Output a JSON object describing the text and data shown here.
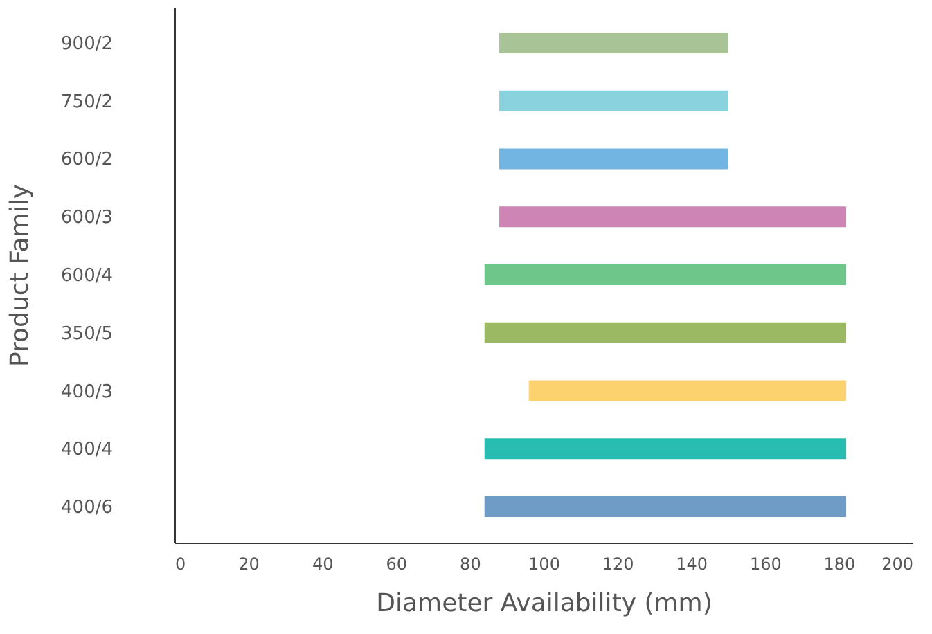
{
  "chart_data": {
    "type": "bar",
    "orientation": "horizontal",
    "xlabel": "Diameter Availability (mm)",
    "ylabel": "Product Family",
    "categories": [
      "900/2",
      "750/2",
      "600/2",
      "600/3",
      "600/4",
      "350/5",
      "400/3",
      "400/4",
      "400/6"
    ],
    "base": [
      88,
      88,
      88,
      88,
      84,
      84,
      96,
      84,
      84
    ],
    "values": [
      62,
      62,
      62,
      94,
      98,
      98,
      86,
      98,
      98
    ],
    "colors": [
      "#a8c496",
      "#8ad3de",
      "#72b5e3",
      "#cf84b6",
      "#6fc68a",
      "#9bb862",
      "#fcd26f",
      "#29bcb0",
      "#6f9cc7"
    ],
    "xlim": [
      0,
      200
    ],
    "xticks": [
      0,
      20,
      40,
      60,
      80,
      100,
      120,
      140,
      160,
      180,
      200
    ],
    "grid": false
  }
}
